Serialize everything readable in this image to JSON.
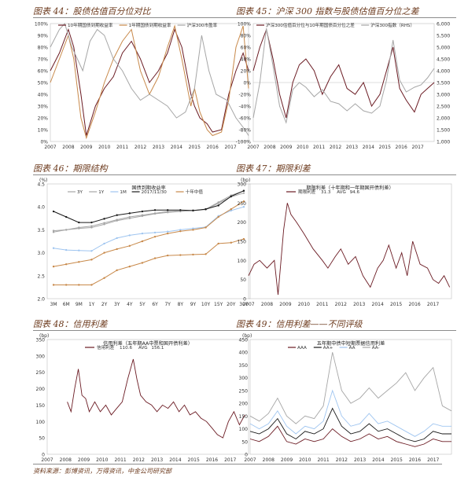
{
  "colors": {
    "maroon": "#6b1b23",
    "gray": "#a6a6a6",
    "orange": "#c8894a",
    "blue": "#9fc5f0",
    "black": "#1a1a1a"
  },
  "panels": [
    {
      "title": "图表 44：股债估值百分位对比"
    },
    {
      "title": "图表 45：沪深 300 指数与股债估值百分位之差"
    },
    {
      "title": "图表 46：期限结构"
    },
    {
      "title": "图表 47：期限利差"
    },
    {
      "title": "图表 48：信用利差"
    },
    {
      "title": "图表 49：信用利差——不同评级"
    }
  ],
  "source": "资料来源：彭博资讯，万得资讯，中金公司研究部",
  "chart_data": [
    {
      "type": "line",
      "legend": [
        "10年期国债到期收益率",
        "1年期国债到期收益率",
        "沪深300市盈率"
      ],
      "series_colors": [
        "maroon",
        "orange",
        "gray"
      ],
      "y_ticks": [
        "0%",
        "10%",
        "20%",
        "30%",
        "40%",
        "50%",
        "60%",
        "70%",
        "80%",
        "90%",
        "100%"
      ],
      "x_ticks": [
        "2007",
        "2008",
        "2009",
        "2010",
        "2011",
        "2012",
        "2013",
        "2014",
        "2015",
        "2016",
        "2017"
      ],
      "ylim": [
        0,
        100
      ],
      "xlim": [
        2007,
        2018
      ],
      "series": [
        {
          "name": "10年期国债到期收益率",
          "x": [
            2007,
            2007.5,
            2008,
            2008.3,
            2008.7,
            2009,
            2009.5,
            2010,
            2010.5,
            2011,
            2011.5,
            2012,
            2012.5,
            2013,
            2013.5,
            2013.9,
            2014.3,
            2014.8,
            2015,
            2015.3,
            2015.7,
            2016,
            2016.5,
            2016.9,
            2017.3,
            2017.7,
            2018
          ],
          "y": [
            60,
            75,
            95,
            80,
            40,
            5,
            30,
            45,
            55,
            75,
            85,
            70,
            50,
            60,
            75,
            95,
            80,
            40,
            30,
            20,
            15,
            8,
            10,
            40,
            60,
            75,
            60
          ]
        },
        {
          "name": "1年期国债到期收益率",
          "x": [
            2007,
            2007.5,
            2008,
            2008.3,
            2008.7,
            2009,
            2009.5,
            2010,
            2010.5,
            2011,
            2011.5,
            2012,
            2012.5,
            2013,
            2013.5,
            2013.9,
            2014.3,
            2014.8,
            2015,
            2015.3,
            2015.7,
            2016,
            2016.5,
            2016.9,
            2017.3,
            2017.7,
            2018
          ],
          "y": [
            50,
            70,
            90,
            70,
            20,
            3,
            25,
            50,
            70,
            85,
            95,
            60,
            40,
            55,
            80,
            98,
            70,
            30,
            45,
            25,
            10,
            5,
            8,
            35,
            80,
            98,
            45
          ]
        },
        {
          "name": "沪深300市盈率",
          "x": [
            2007,
            2007.5,
            2007.8,
            2008.2,
            2008.8,
            2009.2,
            2009.6,
            2010,
            2010.5,
            2011,
            2011.5,
            2012,
            2012.5,
            2013,
            2013.5,
            2014,
            2014.5,
            2015,
            2015.4,
            2015.8,
            2016.2,
            2016.8,
            2017.3,
            2017.8,
            2018
          ],
          "y": [
            80,
            95,
            100,
            80,
            60,
            85,
            95,
            90,
            70,
            60,
            45,
            35,
            40,
            35,
            30,
            20,
            25,
            45,
            90,
            60,
            40,
            35,
            20,
            10,
            5
          ]
        }
      ]
    },
    {
      "type": "line",
      "legend": [
        "沪深300估值百分位与10年期国债百分位之差",
        "沪深300指数（RHS）"
      ],
      "series_colors": [
        "maroon",
        "gray"
      ],
      "y_ticks": [
        "-100%",
        "-80%",
        "-60%",
        "-40%",
        "-20%",
        "0%",
        "20%",
        "40%",
        "60%",
        "80%",
        "100%"
      ],
      "y2_ticks": [
        "1,000",
        "1,500",
        "2,000",
        "2,500",
        "3,000",
        "3,500",
        "4,000",
        "4,500",
        "5,000",
        "5,500",
        "6,000"
      ],
      "x_ticks": [
        "2007",
        "2008",
        "2009",
        "2010",
        "2011",
        "2012",
        "2013",
        "2014",
        "2015",
        "2016",
        "2017"
      ],
      "ylim": [
        -100,
        100
      ],
      "y2lim": [
        1000,
        6000
      ],
      "xlim": [
        2007,
        2018
      ],
      "series": [
        {
          "name": "沪深300估值百分位与10年期国债百分位之差",
          "axis": "left",
          "x": [
            2007,
            2007.4,
            2007.8,
            2008.2,
            2008.6,
            2009,
            2009.4,
            2009.8,
            2010.2,
            2010.7,
            2011.2,
            2011.7,
            2012.2,
            2012.7,
            2013.2,
            2013.7,
            2014.2,
            2014.7,
            2015.1,
            2015.5,
            2015.9,
            2016.3,
            2016.8,
            2017.2,
            2017.6,
            2018
          ],
          "y": [
            20,
            60,
            90,
            40,
            -20,
            -60,
            0,
            30,
            40,
            20,
            -20,
            10,
            30,
            -10,
            -20,
            0,
            -40,
            -20,
            20,
            60,
            -10,
            -30,
            -50,
            -20,
            -10,
            0
          ]
        },
        {
          "name": "沪深300指数（RHS）",
          "axis": "right",
          "x": [
            2007,
            2007.4,
            2007.8,
            2008.2,
            2008.6,
            2009,
            2009.4,
            2009.8,
            2010.2,
            2010.7,
            2011.2,
            2011.7,
            2012.2,
            2012.7,
            2013.2,
            2013.7,
            2014.2,
            2014.7,
            2015.1,
            2015.5,
            2015.9,
            2016.3,
            2016.8,
            2017.2,
            2017.6,
            2018
          ],
          "y": [
            2000,
            3500,
            5800,
            4200,
            2500,
            1800,
            3200,
            3500,
            3300,
            2900,
            3200,
            2700,
            2600,
            2300,
            2600,
            2300,
            2200,
            2500,
            3600,
            5300,
            3600,
            3100,
            3300,
            3400,
            3700,
            4100
          ]
        }
      ]
    },
    {
      "type": "line",
      "chart_title": "国债到期收益率",
      "ylabel": "(%)",
      "legend": [
        "3Y",
        "1Y",
        "1M",
        "2017/11/30",
        "十年中值"
      ],
      "series_colors": [
        "gray",
        "gray",
        "blue",
        "black",
        "orange"
      ],
      "categories": [
        "3M",
        "6M",
        "9M",
        "1Y",
        "2Y",
        "3Y",
        "4Y",
        "5Y",
        "6Y",
        "7Y",
        "8Y",
        "9Y",
        "10Y",
        "15Y",
        "20Y",
        "30Y"
      ],
      "y_ticks": [
        "2.0",
        "2.5",
        "3.0",
        "3.5",
        "4.0",
        "4.5"
      ],
      "ylim": [
        2.0,
        4.5
      ],
      "series": [
        {
          "name": "3Y",
          "values": [
            3.48,
            3.5,
            3.53,
            3.55,
            3.62,
            3.7,
            3.75,
            3.8,
            3.85,
            3.88,
            3.9,
            3.92,
            3.95,
            4.1,
            4.25,
            4.35
          ]
        },
        {
          "name": "1Y",
          "values": [
            3.45,
            3.5,
            3.55,
            3.58,
            3.65,
            3.72,
            3.78,
            3.82,
            3.86,
            3.9,
            3.91,
            3.92,
            3.94,
            4.08,
            4.22,
            4.3
          ]
        },
        {
          "name": "1M",
          "values": [
            3.1,
            3.06,
            3.05,
            3.04,
            3.2,
            3.32,
            3.38,
            3.42,
            3.44,
            3.46,
            3.5,
            3.53,
            3.56,
            3.8,
            3.92,
            4.0
          ]
        },
        {
          "name": "2017/11/30",
          "values": [
            3.9,
            3.78,
            3.66,
            3.66,
            3.74,
            3.82,
            3.86,
            3.9,
            3.93,
            3.93,
            3.93,
            3.92,
            3.95,
            4.03,
            4.23,
            4.35
          ]
        },
        {
          "name": "十年中值",
          "values": [
            2.7,
            2.75,
            2.8,
            2.85,
            3.0,
            3.08,
            3.15,
            3.25,
            3.35,
            3.42,
            3.47,
            3.5,
            3.55,
            3.78,
            3.95,
            4.12
          ]
        },
        {
          "name": "",
          "values": [
            2.3,
            2.3,
            2.3,
            2.3,
            2.45,
            2.62,
            2.7,
            2.78,
            2.88,
            2.94,
            2.95,
            2.96,
            2.97,
            3.2,
            3.22,
            3.3
          ]
        }
      ]
    },
    {
      "type": "line",
      "chart_title": "期限利差（十年期和一年期国开债利差）",
      "ylabel": "(bp)",
      "legend": [
        "期限利差",
        "31.3",
        "AVG",
        "94.6"
      ],
      "series_colors": [
        "maroon"
      ],
      "y_ticks": [
        "0",
        "50",
        "100",
        "150",
        "200",
        "250",
        "300"
      ],
      "x_ticks": [
        "2007",
        "2008",
        "2009",
        "2010",
        "2011",
        "2012",
        "2013",
        "2014",
        "2015",
        "2016",
        "2017"
      ],
      "ylim": [
        0,
        300
      ],
      "xlim": [
        2007,
        2018
      ],
      "series": [
        {
          "name": "期限利差",
          "x": [
            2007,
            2007.3,
            2007.6,
            2008,
            2008.4,
            2008.6,
            2008.9,
            2009.1,
            2009.3,
            2009.6,
            2010,
            2010.5,
            2011,
            2011.3,
            2011.7,
            2012,
            2012.4,
            2012.8,
            2013.2,
            2013.6,
            2014,
            2014.3,
            2014.6,
            2015,
            2015.3,
            2015.6,
            2015.9,
            2016.3,
            2016.7,
            2017,
            2017.3,
            2017.6,
            2017.9
          ],
          "y": [
            60,
            90,
            100,
            80,
            100,
            10,
            180,
            250,
            220,
            200,
            170,
            130,
            100,
            80,
            110,
            130,
            90,
            110,
            60,
            30,
            80,
            100,
            140,
            80,
            120,
            60,
            150,
            90,
            80,
            50,
            40,
            60,
            30
          ]
        }
      ]
    },
    {
      "type": "line",
      "chart_title": "信用利差（五年期AA中票和国开债利差）",
      "ylabel": "(bp)",
      "legend": [
        "信用利差",
        "110.6",
        "AVG",
        "156.1"
      ],
      "series_colors": [
        "maroon"
      ],
      "y_ticks": [
        "0",
        "50",
        "100",
        "150",
        "200",
        "250",
        "300",
        "350"
      ],
      "x_ticks": [
        "2007",
        "2008",
        "2009",
        "2010",
        "2011",
        "2012",
        "2013",
        "2014",
        "2015",
        "2016",
        "2017"
      ],
      "ylim": [
        0,
        350
      ],
      "xlim": [
        2007,
        2018
      ],
      "series": [
        {
          "name": "信用利差",
          "x": [
            2008.1,
            2008.3,
            2008.5,
            2008.7,
            2008.9,
            2009.1,
            2009.3,
            2009.6,
            2009.9,
            2010.2,
            2010.5,
            2010.8,
            2011.1,
            2011.4,
            2011.7,
            2011.9,
            2012.1,
            2012.4,
            2012.7,
            2013,
            2013.3,
            2013.6,
            2013.9,
            2014.2,
            2014.5,
            2014.8,
            2015.1,
            2015.4,
            2015.7,
            2016,
            2016.3,
            2016.6,
            2016.9,
            2017.2,
            2017.5,
            2017.8
          ],
          "y": [
            160,
            130,
            200,
            260,
            180,
            170,
            130,
            160,
            130,
            150,
            120,
            140,
            160,
            230,
            290,
            230,
            180,
            160,
            150,
            130,
            150,
            140,
            160,
            130,
            150,
            120,
            130,
            110,
            100,
            80,
            60,
            50,
            100,
            130,
            90,
            120
          ]
        }
      ]
    },
    {
      "type": "line",
      "chart_title": "五年期中债中短期票据信用利差",
      "ylabel": "(bp)",
      "legend": [
        "AAA",
        "AA+",
        "AA",
        "AA-"
      ],
      "series_colors": [
        "maroon",
        "black",
        "blue",
        "gray"
      ],
      "y_ticks": [
        "0",
        "50",
        "100",
        "150",
        "200",
        "250",
        "300",
        "350",
        "400",
        "450"
      ],
      "x_ticks": [
        "2007",
        "2008",
        "2009",
        "2010",
        "2011",
        "2012",
        "2013",
        "2014",
        "2015",
        "2016",
        "2017"
      ],
      "ylim": [
        0,
        450
      ],
      "xlim": [
        2007,
        2018
      ],
      "series": [
        {
          "name": "AAA",
          "x": [
            2007,
            2007.5,
            2008,
            2008.5,
            2009,
            2009.5,
            2010,
            2010.5,
            2011,
            2011.5,
            2012,
            2012.5,
            2013,
            2013.5,
            2014,
            2014.5,
            2015,
            2015.5,
            2016,
            2016.5,
            2017,
            2017.5,
            2018
          ],
          "y": [
            60,
            50,
            70,
            110,
            50,
            40,
            60,
            50,
            60,
            100,
            70,
            50,
            60,
            80,
            60,
            70,
            50,
            40,
            30,
            40,
            60,
            50,
            50
          ]
        },
        {
          "name": "AA+",
          "x": [
            2007,
            2007.5,
            2008,
            2008.5,
            2009,
            2009.5,
            2010,
            2010.5,
            2011,
            2011.5,
            2012,
            2012.5,
            2013,
            2013.5,
            2014,
            2014.5,
            2015,
            2015.5,
            2016,
            2016.5,
            2017,
            2017.5,
            2018
          ],
          "y": [
            90,
            80,
            100,
            140,
            80,
            60,
            90,
            80,
            100,
            180,
            110,
            80,
            90,
            120,
            90,
            100,
            80,
            60,
            50,
            60,
            90,
            80,
            80
          ]
        },
        {
          "name": "AA",
          "x": [
            2007,
            2007.5,
            2008,
            2008.5,
            2009,
            2009.5,
            2010,
            2010.5,
            2011,
            2011.5,
            2012,
            2012.5,
            2013,
            2013.5,
            2014,
            2014.5,
            2015,
            2015.5,
            2016,
            2016.5,
            2017,
            2017.5,
            2018
          ],
          "y": [
            120,
            100,
            120,
            170,
            110,
            80,
            110,
            100,
            130,
            250,
            150,
            110,
            120,
            160,
            120,
            130,
            110,
            90,
            70,
            90,
            120,
            110,
            110
          ]
        },
        {
          "name": "AA-",
          "x": [
            2007,
            2007.5,
            2008,
            2008.5,
            2009,
            2009.5,
            2010,
            2010.5,
            2011,
            2011.5,
            2012,
            2012.5,
            2013,
            2013.5,
            2014,
            2014.5,
            2015,
            2015.5,
            2016,
            2016.5,
            2017,
            2017.5,
            2018
          ],
          "y": [
            150,
            130,
            160,
            220,
            150,
            120,
            150,
            140,
            190,
            400,
            250,
            200,
            220,
            260,
            220,
            250,
            280,
            320,
            250,
            300,
            340,
            190,
            170
          ]
        }
      ]
    }
  ]
}
